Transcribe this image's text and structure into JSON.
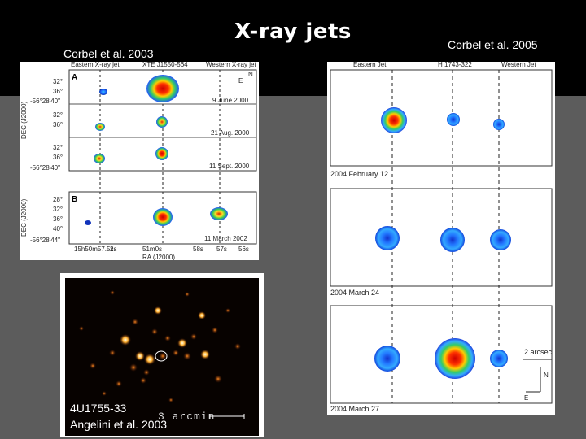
{
  "slide": {
    "title": "X-ray jets",
    "cite_left": "Corbel et al. 2003",
    "cite_right": "Corbel et al. 2005"
  },
  "left_figure": {
    "header": [
      "Eastern X-ray jet",
      "XTE J1550-564",
      "Western X-ray jet"
    ],
    "panel_a_label": "A",
    "panel_b_label": "B",
    "dates": [
      "9 June 2000",
      "21 Aug. 2000",
      "11 Sept. 2000",
      "11 March 2002"
    ],
    "dec_ticks_a": [
      "32°",
      "36°",
      "-56°28'40\"",
      "32°",
      "36°",
      "32°",
      "36°",
      "-56°28'40\""
    ],
    "dec_ticks_b": [
      "28°",
      "32°",
      "36°",
      "40°",
      "-56°28'44\""
    ],
    "ra_ticks": [
      "15h50m57.5s",
      "2s",
      "51m0s",
      "58s",
      "57s",
      "56s"
    ],
    "y_axis_label": "DEC (J2000)",
    "x_axis_label": "RA (J2000)"
  },
  "xray_image": {
    "scale_label": "3 arcmin",
    "source_label": "4U1755-33",
    "cite": "Angelini et al. 2003"
  },
  "right_figure": {
    "header": [
      "Eastern Jet",
      "H 1743-322",
      "Western Jet"
    ],
    "dates": [
      "2004 February 12",
      "2004 March 24",
      "2004 March 27"
    ],
    "scale_label": "2 arcsec",
    "compass_n": "N",
    "compass_e": "E"
  }
}
